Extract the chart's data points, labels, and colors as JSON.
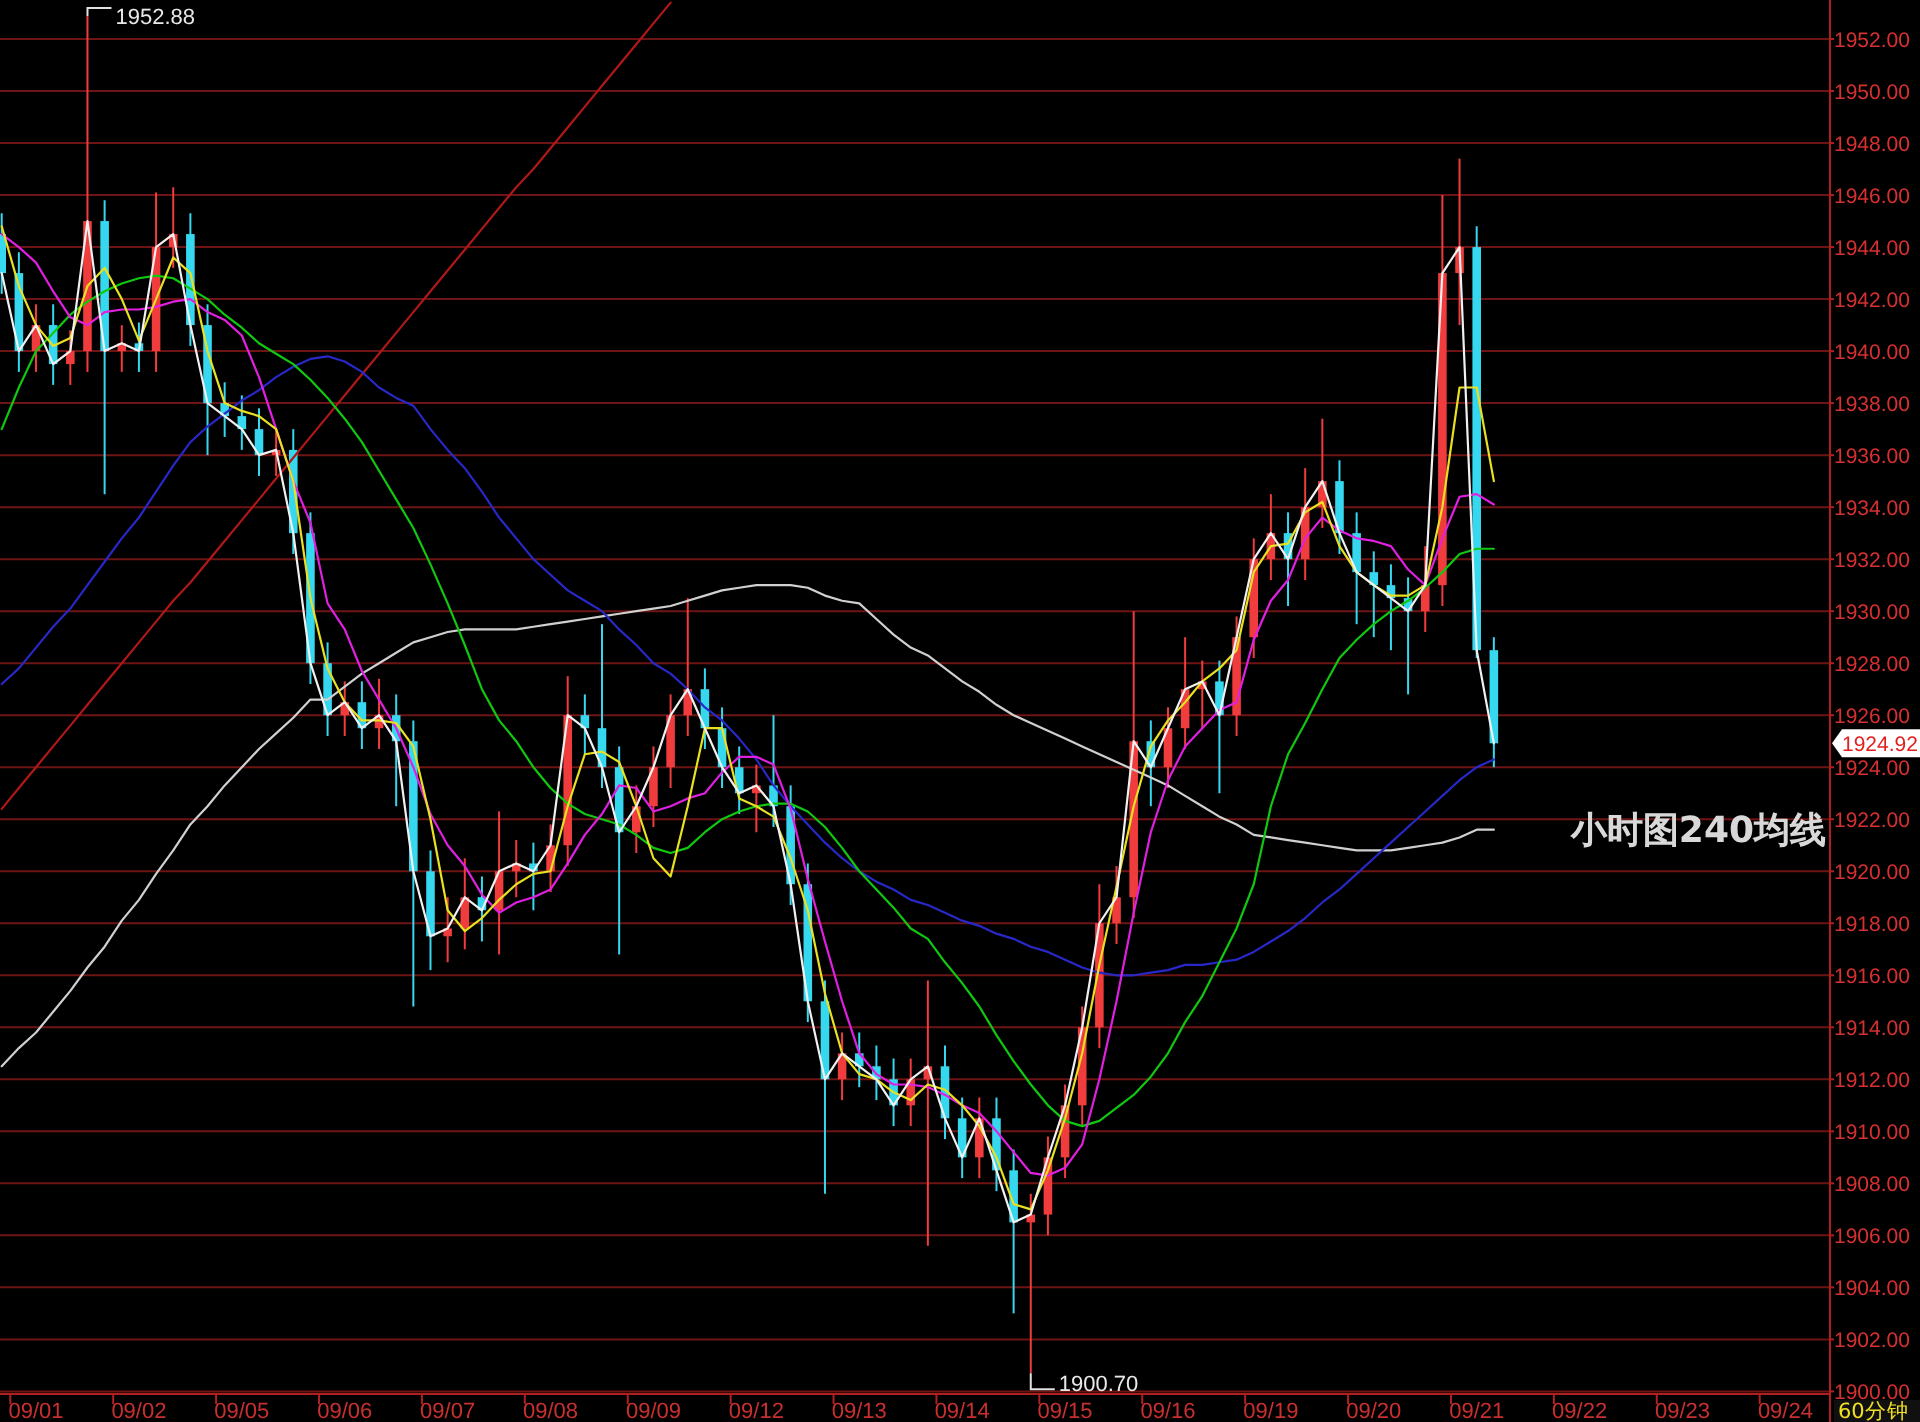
{
  "chart_data": {
    "type": "candlestick",
    "categories": [
      null,
      null,
      "09/01",
      null,
      null,
      null,
      null,
      null,
      "09/02",
      null,
      null,
      null,
      null,
      null,
      "09/05",
      null,
      null,
      null,
      null,
      null,
      "09/06",
      null,
      null,
      null,
      null,
      null,
      "09/07",
      null,
      null,
      null,
      null,
      null,
      "09/08",
      null,
      null,
      null,
      null,
      null,
      "09/09",
      null,
      null,
      null,
      null,
      null,
      "09/12",
      null,
      null,
      null,
      null,
      null,
      "09/13",
      null,
      null,
      null,
      null,
      null,
      "09/14",
      null,
      null,
      null,
      null,
      null,
      "09/15",
      null,
      null,
      null,
      null,
      null,
      "09/16",
      null,
      null,
      null,
      null,
      null,
      "09/19",
      null,
      null,
      null,
      null,
      null,
      "09/20",
      null,
      null,
      null,
      null,
      null,
      "09/21",
      null,
      null,
      null,
      null,
      null,
      "09/22",
      null,
      null,
      null,
      null,
      null,
      "09/23",
      null,
      null,
      null,
      null,
      null,
      "09/24",
      null,
      null
    ],
    "ohlc": [
      [
        1944.5,
        1945.3,
        1942.2,
        1943
      ],
      [
        1943,
        1943.8,
        1939.2,
        1940
      ],
      [
        1940,
        1941.8,
        1939.2,
        1941
      ],
      [
        1941,
        1941.8,
        1938.7,
        1939.5
      ],
      [
        1939.5,
        1940.8,
        1938.7,
        1940
      ],
      [
        1940,
        1952.88,
        1939.2,
        1945
      ],
      [
        1945,
        1945.8,
        1934.5,
        1940
      ],
      [
        1940,
        1941,
        1939.2,
        1940.3
      ],
      [
        1940.3,
        1941.1,
        1939.2,
        1940
      ],
      [
        1940,
        1946.1,
        1939.2,
        1944
      ],
      [
        1944,
        1946.3,
        1943.2,
        1944.5
      ],
      [
        1944.5,
        1945.3,
        1940.2,
        1941
      ],
      [
        1941,
        1941.8,
        1936,
        1938
      ],
      [
        1938,
        1938.8,
        1936.7,
        1937.5
      ],
      [
        1937.5,
        1938.3,
        1936.2,
        1937
      ],
      [
        1937,
        1937.8,
        1935.2,
        1936
      ],
      [
        1936,
        1937,
        1935.2,
        1936.2
      ],
      [
        1936.2,
        1937,
        1932.2,
        1933
      ],
      [
        1933,
        1933.8,
        1927.2,
        1928
      ],
      [
        1928,
        1928.8,
        1925.2,
        1926
      ],
      [
        1926,
        1927.3,
        1925.2,
        1926.5
      ],
      [
        1926.5,
        1927.3,
        1924.7,
        1925.5
      ],
      [
        1925.5,
        1927.4,
        1924.7,
        1926
      ],
      [
        1926,
        1926.8,
        1922.5,
        1925
      ],
      [
        1925,
        1925.8,
        1914.8,
        1920
      ],
      [
        1920,
        1920.8,
        1916.2,
        1917.5
      ],
      [
        1917.5,
        1919,
        1916.5,
        1917.8
      ],
      [
        1917.8,
        1920.5,
        1917,
        1919
      ],
      [
        1919,
        1919.8,
        1917.3,
        1918.5
      ],
      [
        1918.5,
        1922.3,
        1916.8,
        1920
      ],
      [
        1920,
        1921.2,
        1919,
        1920.3
      ],
      [
        1920.3,
        1921.1,
        1918.5,
        1920
      ],
      [
        1920,
        1921.8,
        1919.2,
        1921
      ],
      [
        1921,
        1927.5,
        1920.2,
        1926
      ],
      [
        1926,
        1926.8,
        1924.5,
        1925.5
      ],
      [
        1925.5,
        1929.5,
        1923.2,
        1924
      ],
      [
        1924,
        1924.8,
        1916.8,
        1921.5
      ],
      [
        1921.5,
        1923.3,
        1920.7,
        1922.5
      ],
      [
        1922.5,
        1924.8,
        1921.7,
        1924
      ],
      [
        1924,
        1926.8,
        1923.2,
        1926
      ],
      [
        1926,
        1930.5,
        1925.2,
        1927
      ],
      [
        1927,
        1927.8,
        1924.7,
        1925.5
      ],
      [
        1925.5,
        1926.3,
        1923.2,
        1924
      ],
      [
        1924,
        1924.8,
        1922.2,
        1923
      ],
      [
        1923,
        1924.1,
        1921.5,
        1923.3
      ],
      [
        1923.3,
        1926,
        1921.7,
        1922.5
      ],
      [
        1922.5,
        1923.3,
        1918.7,
        1919.5
      ],
      [
        1919.5,
        1920.3,
        1914.2,
        1915
      ],
      [
        1915,
        1915.8,
        1907.6,
        1912
      ],
      [
        1912,
        1913.8,
        1911.2,
        1913
      ],
      [
        1913,
        1913.8,
        1911.7,
        1912.5
      ],
      [
        1912.5,
        1913.3,
        1911.2,
        1912
      ],
      [
        1912,
        1912.8,
        1910.2,
        1911
      ],
      [
        1911,
        1912.8,
        1910.2,
        1912
      ],
      [
        1912,
        1915.8,
        1905.6,
        1912.5
      ],
      [
        1912.5,
        1913.3,
        1909.7,
        1910.5
      ],
      [
        1910.5,
        1911.3,
        1908.2,
        1909
      ],
      [
        1909,
        1911.3,
        1908.2,
        1910.5
      ],
      [
        1910.5,
        1911.3,
        1907.7,
        1908.5
      ],
      [
        1908.5,
        1909.3,
        1903,
        1906.5
      ],
      [
        1906.5,
        1907.6,
        1900.7,
        1906.8
      ],
      [
        1906.8,
        1909.8,
        1906,
        1909
      ],
      [
        1909,
        1911.8,
        1908.2,
        1911
      ],
      [
        1911,
        1914.8,
        1910.2,
        1914
      ],
      [
        1914,
        1919.5,
        1913.2,
        1918
      ],
      [
        1918,
        1920.2,
        1917.2,
        1919
      ],
      [
        1919,
        1930,
        1918.2,
        1925
      ],
      [
        1925,
        1925.8,
        1922.5,
        1924
      ],
      [
        1924,
        1926.3,
        1923.2,
        1925.5
      ],
      [
        1925.5,
        1929,
        1924.7,
        1927
      ],
      [
        1927,
        1928.1,
        1925.5,
        1927.3
      ],
      [
        1927.3,
        1928.1,
        1923,
        1926
      ],
      [
        1926,
        1929.8,
        1925.2,
        1929
      ],
      [
        1929,
        1932.8,
        1928.2,
        1932
      ],
      [
        1932,
        1934.5,
        1931.2,
        1933
      ],
      [
        1933,
        1933.8,
        1930.2,
        1932
      ],
      [
        1932,
        1935.5,
        1931.2,
        1934
      ],
      [
        1934,
        1937.4,
        1933.2,
        1935
      ],
      [
        1935,
        1935.8,
        1932.2,
        1933
      ],
      [
        1933,
        1933.8,
        1929.5,
        1931.5
      ],
      [
        1931.5,
        1932.3,
        1929,
        1931
      ],
      [
        1931,
        1931.8,
        1928.5,
        1930.5
      ],
      [
        1930.5,
        1931.3,
        1926.8,
        1930
      ],
      [
        1930,
        1932.5,
        1929.2,
        1931
      ],
      [
        1931,
        1946,
        1930.2,
        1943
      ],
      [
        1943,
        1947.4,
        1941,
        1944
      ],
      [
        1944,
        1944.8,
        1928.2,
        1928.5
      ],
      [
        1928.5,
        1929,
        1924,
        1924.92
      ],
      null,
      null,
      null,
      null,
      null,
      null,
      null,
      null,
      null,
      null,
      null,
      null,
      null,
      null,
      null,
      null,
      null,
      null,
      null
    ],
    "colors": [
      "#36d8f0",
      "#36d8f0",
      "#f03c3c",
      "#36d8f0",
      "#f03c3c",
      "#f03c3c",
      "#36d8f0",
      "#f03c3c",
      "#36d8f0",
      "#f03c3c",
      "#f03c3c",
      "#36d8f0",
      "#36d8f0",
      "#36d8f0",
      "#36d8f0",
      "#36d8f0",
      "#f03c3c",
      "#36d8f0",
      "#36d8f0",
      "#36d8f0",
      "#f03c3c",
      "#36d8f0",
      "#f03c3c",
      "#36d8f0",
      "#36d8f0",
      "#36d8f0",
      "#f03c3c",
      "#f03c3c",
      "#36d8f0",
      "#f03c3c",
      "#f03c3c",
      "#36d8f0",
      "#f03c3c",
      "#f03c3c",
      "#36d8f0",
      "#36d8f0",
      "#36d8f0",
      "#f03c3c",
      "#f03c3c",
      "#f03c3c",
      "#f03c3c",
      "#36d8f0",
      "#36d8f0",
      "#36d8f0",
      "#f03c3c",
      "#36d8f0",
      "#36d8f0",
      "#36d8f0",
      "#36d8f0",
      "#f03c3c",
      "#36d8f0",
      "#36d8f0",
      "#36d8f0",
      "#f03c3c",
      "#f03c3c",
      "#36d8f0",
      "#36d8f0",
      "#f03c3c",
      "#36d8f0",
      "#36d8f0",
      "#f03c3c",
      "#f03c3c",
      "#f03c3c",
      "#f03c3c",
      "#f03c3c",
      "#f03c3c",
      "#f03c3c",
      "#36d8f0",
      "#f03c3c",
      "#f03c3c",
      "#f03c3c",
      "#36d8f0",
      "#f03c3c",
      "#f03c3c",
      "#f03c3c",
      "#36d8f0",
      "#f03c3c",
      "#f03c3c",
      "#36d8f0",
      "#36d8f0",
      "#36d8f0",
      "#36d8f0",
      "#36d8f0",
      "#f03c3c",
      "#f03c3c",
      "#f03c3c",
      "#36d8f0",
      "#36d8f0",
      null,
      null,
      null,
      null,
      null,
      null,
      null,
      null,
      null,
      null,
      null,
      null,
      null,
      null,
      null,
      null,
      null,
      null,
      null
    ],
    "series": [
      {
        "type": "line",
        "color": "#b01818",
        "values": [
          1922.4,
          1923.2,
          1924.0,
          1924.8,
          1925.6,
          1926.4,
          1927.2,
          1928.0,
          1928.8,
          1929.6,
          1930.4,
          1931.1,
          1931.9,
          1932.7,
          1933.5,
          1934.3,
          1935.1,
          1935.9,
          1936.7,
          1937.5,
          1938.3,
          1939.1,
          1939.9,
          1940.7,
          1941.5,
          1942.3,
          1943.1,
          1943.9,
          1944.7,
          1945.5,
          1946.3,
          1947.0,
          1947.8,
          1948.6,
          1949.4,
          1950.2,
          1951.0,
          1951.8,
          1952.6,
          1953.4,
          null,
          null,
          null,
          null,
          null,
          null,
          null,
          null,
          null,
          null,
          null,
          null,
          null,
          null,
          null,
          null,
          null,
          null,
          null,
          null,
          null,
          null,
          null,
          null,
          null,
          null,
          null,
          null,
          null,
          null,
          null,
          null,
          null,
          null,
          null,
          null,
          null,
          null,
          null,
          null,
          null,
          null,
          null,
          null,
          null,
          null,
          null,
          null,
          null,
          null,
          null,
          null,
          null,
          null,
          null,
          null,
          null,
          null,
          null,
          null,
          null,
          null,
          null,
          null,
          null,
          null,
          null
        ]
      },
      {
        "type": "line",
        "color": "#d0d0d0",
        "values": [
          1912.5,
          1913.2,
          1913.8,
          1914.6,
          1915.4,
          1916.3,
          1917.1,
          1918.1,
          1918.9,
          1919.9,
          1920.8,
          1921.8,
          1922.5,
          1923.3,
          1924,
          1924.7,
          1925.3,
          1925.9,
          1926.6,
          1926.6,
          1927.1,
          1927.6,
          1928,
          1928.4,
          1928.8,
          1929,
          1929.2,
          1929.3,
          1929.3,
          1929.3,
          1929.3,
          1929.4,
          1929.5,
          1929.6,
          1929.7,
          1929.8,
          1929.9,
          1930,
          1930.1,
          1930.2,
          1930.4,
          1930.6,
          1930.8,
          1930.9,
          1931,
          1931,
          1931,
          1930.9,
          1930.6,
          1930.4,
          1930.3,
          1929.7,
          1929.1,
          1928.6,
          1928.3,
          1927.8,
          1927.3,
          1926.9,
          1926.4,
          1926,
          1925.7,
          1925.4,
          1925.1,
          1924.8,
          1924.5,
          1924.2,
          1923.9,
          1923.6,
          1923.3,
          1922.9,
          1922.5,
          1922.1,
          1921.8,
          1921.4,
          1921.3,
          1921.2,
          1921.1,
          1921,
          1920.9,
          1920.8,
          1920.8,
          1920.8,
          1920.9,
          1921,
          1921.1,
          1921.3,
          1921.6,
          1921.6,
          null,
          null,
          null,
          null,
          null,
          null,
          null,
          null,
          null,
          null,
          null,
          null,
          null,
          null,
          null,
          null,
          null,
          null,
          null
        ]
      },
      {
        "type": "line",
        "color": "#2828c8",
        "values": [
          1927.2,
          1927.8,
          1928.6,
          1929.4,
          1930.1,
          1931,
          1931.9,
          1932.8,
          1933.6,
          1934.6,
          1935.6,
          1936.5,
          1937.1,
          1937.6,
          1938.1,
          1938.5,
          1939,
          1939.4,
          1939.7,
          1939.8,
          1939.6,
          1939.2,
          1938.6,
          1938.2,
          1937.9,
          1937,
          1936.2,
          1935.5,
          1934.6,
          1933.6,
          1932.8,
          1932,
          1931.4,
          1930.8,
          1930.4,
          1930,
          1929.3,
          1928.7,
          1928,
          1927.6,
          1927,
          1926.3,
          1925.8,
          1925.1,
          1924.3,
          1923.3,
          1922.5,
          1921.8,
          1921.1,
          1920.5,
          1920,
          1919.6,
          1919.3,
          1918.9,
          1918.7,
          1918.4,
          1918.1,
          1917.9,
          1917.6,
          1917.4,
          1917.1,
          1916.9,
          1916.6,
          1916.3,
          1916.1,
          1916,
          1916,
          1916.1,
          1916.2,
          1916.4,
          1916.4,
          1916.5,
          1916.6,
          1916.9,
          1917.3,
          1917.7,
          1918.2,
          1918.8,
          1919.3,
          1919.9,
          1920.5,
          1921.1,
          1921.7,
          1922.3,
          1922.9,
          1923.5,
          1924,
          1924.3,
          null,
          null,
          null,
          null,
          null,
          null,
          null,
          null,
          null,
          null,
          null,
          null,
          null,
          null,
          null,
          null,
          null,
          null,
          null
        ]
      },
      {
        "type": "line",
        "color": "#10c810",
        "values": [
          1937,
          1938.6,
          1940,
          1940.7,
          1941.4,
          1941.9,
          1942.3,
          1942.6,
          1942.8,
          1942.9,
          1942.8,
          1942.4,
          1942,
          1941.4,
          1940.9,
          1940.3,
          1939.9,
          1939.5,
          1938.9,
          1938.2,
          1937.4,
          1936.5,
          1935.4,
          1934.3,
          1933.2,
          1931.8,
          1930.3,
          1928.7,
          1927,
          1925.8,
          1925,
          1924,
          1923.2,
          1922.6,
          1922.2,
          1922,
          1921.8,
          1921.4,
          1920.9,
          1920.7,
          1920.9,
          1921.5,
          1922,
          1922.3,
          1922.5,
          1922.6,
          1922.6,
          1922.3,
          1921.7,
          1920.9,
          1920,
          1919.3,
          1918.6,
          1917.8,
          1917.4,
          1916.5,
          1915.7,
          1914.8,
          1913.7,
          1912.7,
          1911.8,
          1911,
          1910.4,
          1910.2,
          1910.4,
          1910.9,
          1911.4,
          1912.1,
          1913,
          1914.2,
          1915.2,
          1916.5,
          1917.8,
          1919.5,
          1922.5,
          1924.5,
          1925.7,
          1927,
          1928.2,
          1928.9,
          1929.5,
          1930,
          1930.4,
          1930.9,
          1931.5,
          1932.2,
          1932.4,
          1932.4,
          null,
          null,
          null,
          null,
          null,
          null,
          null,
          null,
          null,
          null,
          null,
          null,
          null,
          null,
          null,
          null,
          null,
          null,
          null
        ]
      },
      {
        "type": "line",
        "color": "#e020e0",
        "values": [
          1944.5,
          1944,
          1943.4,
          1942.3,
          1941.3,
          1941,
          1941.5,
          1941.6,
          1941.6,
          1941.7,
          1941.9,
          1942,
          1941.5,
          1941.2,
          1940.6,
          1939,
          1937,
          1935,
          1933.4,
          1930.3,
          1929.3,
          1927.7,
          1926.6,
          1925.5,
          1924,
          1922.2,
          1921,
          1920.2,
          1919.1,
          1918.4,
          1918.8,
          1919,
          1919.3,
          1920.3,
          1921.4,
          1922.2,
          1923.3,
          1923.2,
          1922.3,
          1922.5,
          1922.8,
          1923,
          1923.8,
          1924.4,
          1924.4,
          1924.1,
          1922.4,
          1919.7,
          1917.3,
          1915,
          1913,
          1912.2,
          1911.8,
          1911.8,
          1911.7,
          1911.4,
          1911,
          1910.7,
          1910,
          1909.2,
          1908.4,
          1908.3,
          1908.6,
          1909.5,
          1912,
          1915,
          1918.4,
          1921.5,
          1923.5,
          1924.8,
          1925.5,
          1926.2,
          1926.5,
          1928.9,
          1930.4,
          1931.2,
          1932.8,
          1933.6,
          1933.1,
          1932.8,
          1932.7,
          1932.5,
          1931.6,
          1931,
          1932.8,
          1934.4,
          1934.5,
          1934.1,
          null,
          null,
          null,
          null,
          null,
          null,
          null,
          null,
          null,
          null,
          null,
          null,
          null,
          null,
          null,
          null,
          null,
          null,
          null
        ]
      },
      {
        "type": "line",
        "color": "#e8e020",
        "values": [
          1944.8,
          1942.5,
          1941,
          1940.2,
          1940.5,
          1942.5,
          1943.2,
          1942,
          1940.4,
          1942,
          1943.6,
          1943,
          1940,
          1938,
          1937.7,
          1937.5,
          1937,
          1935,
          1930.5,
          1927.8,
          1926.5,
          1925.8,
          1925.8,
          1925.7,
          1924.8,
          1922,
          1918.5,
          1917.7,
          1918.2,
          1918.9,
          1919.5,
          1919.9,
          1920,
          1922.5,
          1924.5,
          1924.6,
          1924.2,
          1922.5,
          1920.5,
          1919.8,
          1922.5,
          1925.5,
          1925.5,
          1922.8,
          1922.5,
          1922.1,
          1920.5,
          1918.5,
          1915.3,
          1913,
          1912.2,
          1912,
          1911.5,
          1911.2,
          1911.8,
          1911.6,
          1911,
          1910.2,
          1909,
          1907.2,
          1907,
          1908.5,
          1910.5,
          1913,
          1916.4,
          1919.4,
          1922.5,
          1924.8,
          1925.8,
          1926.5,
          1927.3,
          1927.8,
          1928.5,
          1931.5,
          1932.5,
          1932.6,
          1933.8,
          1934.2,
          1932.5,
          1931.5,
          1931,
          1930.6,
          1930.6,
          1931,
          1934,
          1938.6,
          1938.6,
          1935,
          null,
          null,
          null,
          null,
          null,
          null,
          null,
          null,
          null,
          null,
          null,
          null,
          null,
          null,
          null,
          null,
          null,
          null,
          null
        ]
      },
      {
        "type": "line",
        "color": "#f0f0f0",
        "values": [
          1943,
          1940,
          1941,
          1939.5,
          1940,
          1945,
          1940,
          1940.3,
          1940,
          1944,
          1944.5,
          1941,
          1938,
          1937.5,
          1937,
          1936,
          1936.2,
          1933,
          1928,
          1926,
          1926.5,
          1925.5,
          1926,
          1925,
          1920,
          1917.5,
          1917.8,
          1919,
          1918.5,
          1920,
          1920.3,
          1920,
          1921,
          1926,
          1925.5,
          1924,
          1921.5,
          1922.5,
          1924,
          1926,
          1927,
          1925.5,
          1924,
          1923,
          1923.3,
          1922.5,
          1919.5,
          1915,
          1912,
          1913,
          1912.5,
          1912,
          1911,
          1912,
          1912.5,
          1910.5,
          1909,
          1910.5,
          1908.5,
          1906.5,
          1906.8,
          1909,
          1911,
          1914,
          1918,
          1919,
          1925,
          1924,
          1925.5,
          1927,
          1927.3,
          1926,
          1929,
          1932,
          1933,
          1932,
          1934,
          1935,
          1933,
          1931.5,
          1931,
          1930.5,
          1930,
          1931,
          1943,
          1944,
          1928.5,
          1924.92,
          null,
          null,
          null,
          null,
          null,
          null,
          null,
          null,
          null,
          null,
          null,
          null,
          null,
          null,
          null,
          null,
          null,
          null,
          null
        ]
      }
    ],
    "ylim": [
      1899.9,
      1953.5
    ],
    "yticks": [
      {
        "value": 1900,
        "label": "1900.00"
      },
      {
        "value": 1902,
        "label": "1902.00"
      },
      {
        "value": 1904,
        "label": "1904.00"
      },
      {
        "value": 1906,
        "label": "1906.00"
      },
      {
        "value": 1908,
        "label": "1908.00"
      },
      {
        "value": 1910,
        "label": "1910.00"
      },
      {
        "value": 1912,
        "label": "1912.00"
      },
      {
        "value": 1914,
        "label": "1914.00"
      },
      {
        "value": 1916,
        "label": "1916.00"
      },
      {
        "value": 1918,
        "label": "1918.00"
      },
      {
        "value": 1920,
        "label": "1920.00"
      },
      {
        "value": 1922,
        "label": "1922.00"
      },
      {
        "value": 1924,
        "label": "1924.00"
      },
      {
        "value": 1926,
        "label": "1926.00"
      },
      {
        "value": 1928,
        "label": "1928.00"
      },
      {
        "value": 1930,
        "label": "1930.00"
      },
      {
        "value": 1932,
        "label": "1932.00"
      },
      {
        "value": 1934,
        "label": "1934.00"
      },
      {
        "value": 1936,
        "label": "1936.00"
      },
      {
        "value": 1938,
        "label": "1938.00"
      },
      {
        "value": 1940,
        "label": "1940.00"
      },
      {
        "value": 1942,
        "label": "1942.00"
      },
      {
        "value": 1944,
        "label": "1944.00"
      },
      {
        "value": 1946,
        "label": "1946.00"
      },
      {
        "value": 1948,
        "label": "1948.00"
      },
      {
        "value": 1950,
        "label": "1950.00"
      },
      {
        "value": 1952,
        "label": "1952.00"
      }
    ],
    "grid": "y",
    "annotations": [
      "1952.88",
      "1900.70",
      "1924.92",
      "小时图240均线",
      "60分钟"
    ]
  }
}
